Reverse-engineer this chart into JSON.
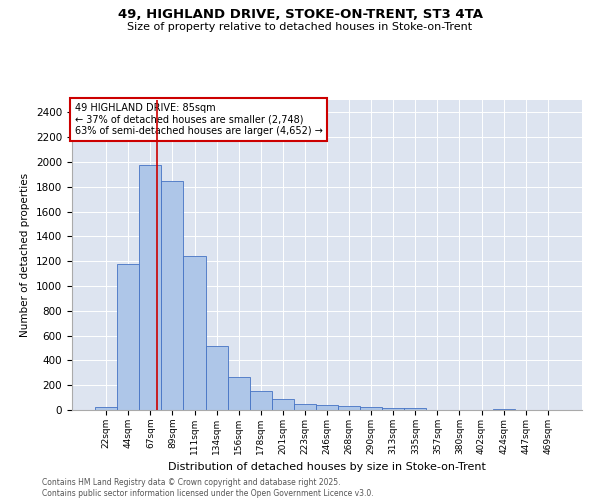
{
  "title1": "49, HIGHLAND DRIVE, STOKE-ON-TRENT, ST3 4TA",
  "title2": "Size of property relative to detached houses in Stoke-on-Trent",
  "xlabel": "Distribution of detached houses by size in Stoke-on-Trent",
  "ylabel": "Number of detached properties",
  "categories": [
    "22sqm",
    "44sqm",
    "67sqm",
    "89sqm",
    "111sqm",
    "134sqm",
    "156sqm",
    "178sqm",
    "201sqm",
    "223sqm",
    "246sqm",
    "268sqm",
    "290sqm",
    "313sqm",
    "335sqm",
    "357sqm",
    "380sqm",
    "402sqm",
    "424sqm",
    "447sqm",
    "469sqm"
  ],
  "values": [
    25,
    1175,
    1975,
    1850,
    1240,
    515,
    270,
    155,
    90,
    48,
    42,
    35,
    22,
    15,
    18,
    0,
    0,
    0,
    12,
    0,
    0
  ],
  "bar_color": "#aec6e8",
  "bar_edge_color": "#4472c4",
  "background_color": "#dde4f0",
  "grid_color": "#ffffff",
  "annotation_box_color": "#cc0000",
  "vline_color": "#cc0000",
  "annotation_line1": "49 HIGHLAND DRIVE: 85sqm",
  "annotation_line2": "← 37% of detached houses are smaller (2,748)",
  "annotation_line3": "63% of semi-detached houses are larger (4,652) →",
  "vline_x_index": 2.3,
  "ylim": [
    0,
    2500
  ],
  "yticks": [
    0,
    200,
    400,
    600,
    800,
    1000,
    1200,
    1400,
    1600,
    1800,
    2000,
    2200,
    2400
  ],
  "footer1": "Contains HM Land Registry data © Crown copyright and database right 2025.",
  "footer2": "Contains public sector information licensed under the Open Government Licence v3.0."
}
